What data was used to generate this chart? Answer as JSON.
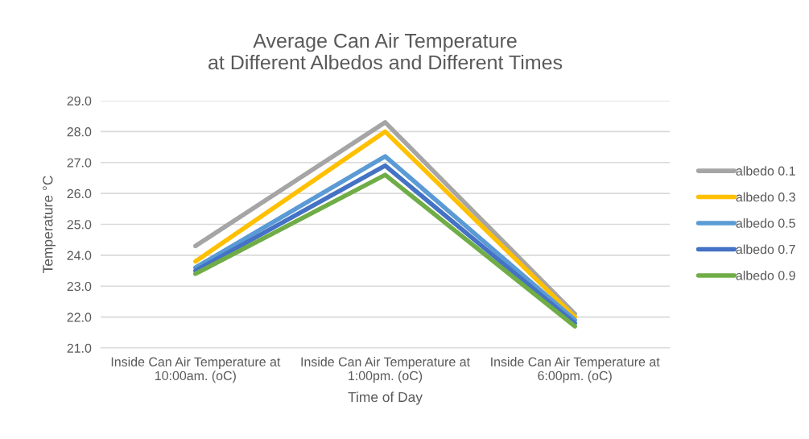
{
  "chart_data": {
    "type": "line",
    "title": "Average Can Air Temperature\nat Different Albedos and Different Times",
    "xlabel": "Time of Day",
    "ylabel": "Temperature °C",
    "categories": [
      "Inside Can Air Temperature at\n10:00am. (oC)",
      "Inside Can Air Temperature at\n1:00pm. (oC)",
      "Inside Can Air Temperature at\n6:00pm. (oC)"
    ],
    "series": [
      {
        "name": "albedo 0.1",
        "color": "#a5a5a5",
        "values": [
          24.3,
          28.3,
          22.1
        ]
      },
      {
        "name": "albedo 0.3",
        "color": "#ffc000",
        "values": [
          23.8,
          28.0,
          22.0
        ]
      },
      {
        "name": "albedo 0.5",
        "color": "#5b9bd5",
        "values": [
          23.6,
          27.2,
          21.9
        ]
      },
      {
        "name": "albedo 0.7",
        "color": "#4472c4",
        "values": [
          23.5,
          26.9,
          21.8
        ]
      },
      {
        "name": "albedo 0.9",
        "color": "#70ad47",
        "values": [
          23.4,
          26.6,
          21.7
        ]
      }
    ],
    "ylim": [
      21,
      29
    ],
    "yticks": [
      {
        "value": 21,
        "label": "21.0"
      },
      {
        "value": 22,
        "label": "22.0"
      },
      {
        "value": 23,
        "label": "23.0"
      },
      {
        "value": 24,
        "label": "24.0"
      },
      {
        "value": 25,
        "label": "25.0"
      },
      {
        "value": 26,
        "label": "26.0"
      },
      {
        "value": 27,
        "label": "27.0"
      },
      {
        "value": 28,
        "label": "28.0"
      },
      {
        "value": 29,
        "label": "29.0"
      }
    ],
    "grid": "y",
    "legend": "right",
    "marker": "none",
    "line_style": "solid"
  }
}
